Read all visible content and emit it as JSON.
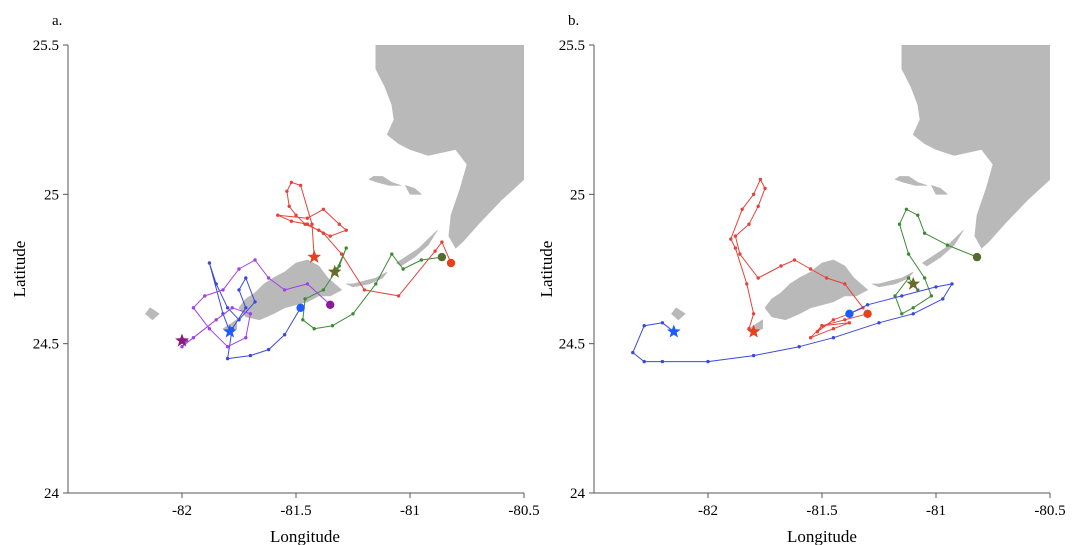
{
  "chart_data": [
    {
      "type": "line",
      "panel_label": "a.",
      "xlabel": "Longitude",
      "ylabel": "Latitude",
      "xlim": [
        -82.5,
        -80.5
      ],
      "ylim": [
        24,
        25.5
      ],
      "xticks": [
        {
          "value": -82,
          "label": "-82"
        },
        {
          "value": -81.5,
          "label": "-81.5"
        },
        {
          "value": -81,
          "label": "-81"
        },
        {
          "value": -80.5,
          "label": "-80.5"
        }
      ],
      "yticks": [
        {
          "value": 24,
          "label": "24"
        },
        {
          "value": 24.5,
          "label": "24.5"
        },
        {
          "value": 25,
          "label": "25"
        },
        {
          "value": 25.5,
          "label": "25.5"
        }
      ],
      "grid": false,
      "series": [
        {
          "color": "#e8413a",
          "start": {
            "x": -80.82,
            "y": 24.77
          },
          "end": {
            "x": -81.42,
            "y": 24.79
          },
          "x": [
            -80.82,
            -80.86,
            -80.89,
            -81.05,
            -81.2,
            -81.3,
            -81.38,
            -81.45,
            -81.52,
            -81.58,
            -81.45,
            -81.38,
            -81.31,
            -81.28,
            -81.35,
            -81.4,
            -81.46,
            -81.5,
            -81.53,
            -81.54,
            -81.52,
            -81.48,
            -81.43,
            -81.42
          ],
          "y": [
            24.77,
            24.84,
            24.81,
            24.66,
            24.68,
            24.8,
            24.87,
            24.9,
            24.91,
            24.93,
            24.92,
            24.95,
            24.9,
            24.88,
            24.86,
            24.88,
            24.9,
            24.93,
            24.96,
            25.01,
            25.04,
            25.03,
            24.9,
            24.79
          ]
        },
        {
          "color": "#3d8a35",
          "start": {
            "x": -80.86,
            "y": 24.79
          },
          "end": {
            "x": -81.33,
            "y": 24.74
          },
          "x": [
            -80.86,
            -80.95,
            -81.03,
            -81.08,
            -81.15,
            -81.25,
            -81.34,
            -81.42,
            -81.47,
            -81.46,
            -81.38,
            -81.31,
            -81.28,
            -81.32,
            -81.33
          ],
          "y": [
            24.79,
            24.78,
            24.75,
            24.8,
            24.7,
            24.6,
            24.56,
            24.55,
            24.58,
            24.65,
            24.68,
            24.76,
            24.82,
            24.75,
            24.74
          ]
        },
        {
          "color": "#3b48e0",
          "start": {
            "x": -81.48,
            "y": 24.62
          },
          "end": {
            "x": -81.79,
            "y": 24.54
          },
          "x": [
            -81.48,
            -81.55,
            -81.62,
            -81.7,
            -81.8,
            -81.78,
            -81.72,
            -81.75,
            -81.72,
            -81.68,
            -81.75,
            -81.8,
            -81.85,
            -81.88,
            -81.82,
            -81.79
          ],
          "y": [
            24.62,
            24.53,
            24.48,
            24.46,
            24.45,
            24.55,
            24.62,
            24.68,
            24.72,
            24.64,
            24.58,
            24.62,
            24.7,
            24.77,
            24.6,
            24.54
          ]
        },
        {
          "color": "#a040e8",
          "start": {
            "x": -81.35,
            "y": 24.63
          },
          "end": {
            "x": -82.0,
            "y": 24.51
          },
          "x": [
            -81.35,
            -81.45,
            -81.55,
            -81.62,
            -81.68,
            -81.75,
            -81.82,
            -81.9,
            -81.95,
            -81.88,
            -81.8,
            -81.72,
            -81.7,
            -81.78,
            -81.85,
            -81.95,
            -82.0,
            -81.98,
            -82.0
          ],
          "y": [
            24.63,
            24.7,
            24.68,
            24.72,
            24.78,
            24.75,
            24.68,
            24.66,
            24.62,
            24.55,
            24.49,
            24.52,
            24.6,
            24.62,
            24.58,
            24.52,
            24.49,
            24.51,
            24.51
          ]
        }
      ],
      "markers": [
        {
          "shape": "circle",
          "color": "#e8401c",
          "x": -80.82,
          "y": 24.77
        },
        {
          "shape": "circle",
          "color": "#556b2f",
          "x": -80.86,
          "y": 24.79
        },
        {
          "shape": "circle",
          "color": "#1e5bff",
          "x": -81.48,
          "y": 24.62
        },
        {
          "shape": "circle",
          "color": "#8b1a9a",
          "x": -81.35,
          "y": 24.63
        },
        {
          "shape": "star",
          "color": "#e8401c",
          "x": -81.42,
          "y": 24.79
        },
        {
          "shape": "star",
          "color": "#6b6b2a",
          "x": -81.33,
          "y": 24.74
        },
        {
          "shape": "star",
          "color": "#1e5bff",
          "x": -81.79,
          "y": 24.54
        },
        {
          "shape": "star",
          "color": "#8b1a7a",
          "x": -82.0,
          "y": 24.51
        }
      ]
    },
    {
      "type": "line",
      "panel_label": "b.",
      "xlabel": "Longitude",
      "ylabel": "Latitude",
      "xlim": [
        -82.5,
        -80.5
      ],
      "ylim": [
        24,
        25.5
      ],
      "xticks": [
        {
          "value": -82,
          "label": "-82"
        },
        {
          "value": -81.5,
          "label": "-81.5"
        },
        {
          "value": -81,
          "label": "-81"
        },
        {
          "value": -80.5,
          "label": "-80.5"
        }
      ],
      "yticks": [
        {
          "value": 24,
          "label": "24"
        },
        {
          "value": 24.5,
          "label": "24.5"
        },
        {
          "value": 25,
          "label": "25"
        },
        {
          "value": 25.5,
          "label": "25.5"
        }
      ],
      "grid": false,
      "series": [
        {
          "color": "#e8413a",
          "start": {
            "x": -81.3,
            "y": 24.6
          },
          "end": {
            "x": -81.8,
            "y": 24.54
          },
          "x": [
            -81.3,
            -81.4,
            -81.5,
            -81.55,
            -81.45,
            -81.38,
            -81.5,
            -81.52,
            -81.45,
            -81.38,
            -81.32,
            -81.4,
            -81.48,
            -81.55,
            -81.62,
            -81.68,
            -81.78,
            -81.86,
            -81.88,
            -81.82,
            -81.78,
            -81.75,
            -81.77,
            -81.8,
            -81.85,
            -81.9,
            -81.88,
            -81.83,
            -81.8,
            -81.82,
            -81.8
          ],
          "y": [
            24.6,
            24.58,
            24.56,
            24.52,
            24.55,
            24.57,
            24.56,
            24.54,
            24.58,
            24.6,
            24.62,
            24.7,
            24.72,
            24.75,
            24.78,
            24.76,
            24.72,
            24.8,
            24.86,
            24.9,
            24.96,
            25.02,
            25.05,
            25.0,
            24.95,
            24.85,
            24.82,
            24.7,
            24.6,
            24.55,
            24.54
          ]
        },
        {
          "color": "#3d8a35",
          "start": {
            "x": -80.82,
            "y": 24.79
          },
          "end": {
            "x": -81.1,
            "y": 24.7
          },
          "x": [
            -80.82,
            -80.95,
            -81.05,
            -81.08,
            -81.13,
            -81.16,
            -81.12,
            -81.05,
            -81.02,
            -81.1,
            -81.15,
            -81.18,
            -81.12,
            -81.08,
            -81.1
          ],
          "y": [
            24.79,
            24.83,
            24.87,
            24.93,
            24.95,
            24.9,
            24.8,
            24.72,
            24.66,
            24.62,
            24.6,
            24.66,
            24.72,
            24.68,
            24.7
          ]
        },
        {
          "color": "#3b48e0",
          "start": {
            "x": -81.38,
            "y": 24.6
          },
          "end": {
            "x": -82.15,
            "y": 24.54
          },
          "x": [
            -81.38,
            -81.3,
            -81.15,
            -81.0,
            -80.93,
            -80.97,
            -81.1,
            -81.25,
            -81.45,
            -81.6,
            -81.8,
            -82.0,
            -82.2,
            -82.28,
            -82.33,
            -82.28,
            -82.2,
            -82.15
          ],
          "y": [
            24.6,
            24.63,
            24.66,
            24.69,
            24.7,
            24.65,
            24.6,
            24.57,
            24.52,
            24.49,
            24.46,
            24.44,
            24.44,
            24.44,
            24.47,
            24.56,
            24.57,
            24.54
          ]
        }
      ],
      "markers": [
        {
          "shape": "circle",
          "color": "#556b2f",
          "x": -80.82,
          "y": 24.79
        },
        {
          "shape": "circle",
          "color": "#1e5bff",
          "x": -81.38,
          "y": 24.6
        },
        {
          "shape": "circle",
          "color": "#e8401c",
          "x": -81.3,
          "y": 24.6
        },
        {
          "shape": "star",
          "color": "#e8401c",
          "x": -81.8,
          "y": 24.54
        },
        {
          "shape": "star",
          "color": "#6b6b2a",
          "x": -81.1,
          "y": 24.7
        },
        {
          "shape": "star",
          "color": "#1e5bff",
          "x": -82.15,
          "y": 24.54
        }
      ]
    }
  ]
}
